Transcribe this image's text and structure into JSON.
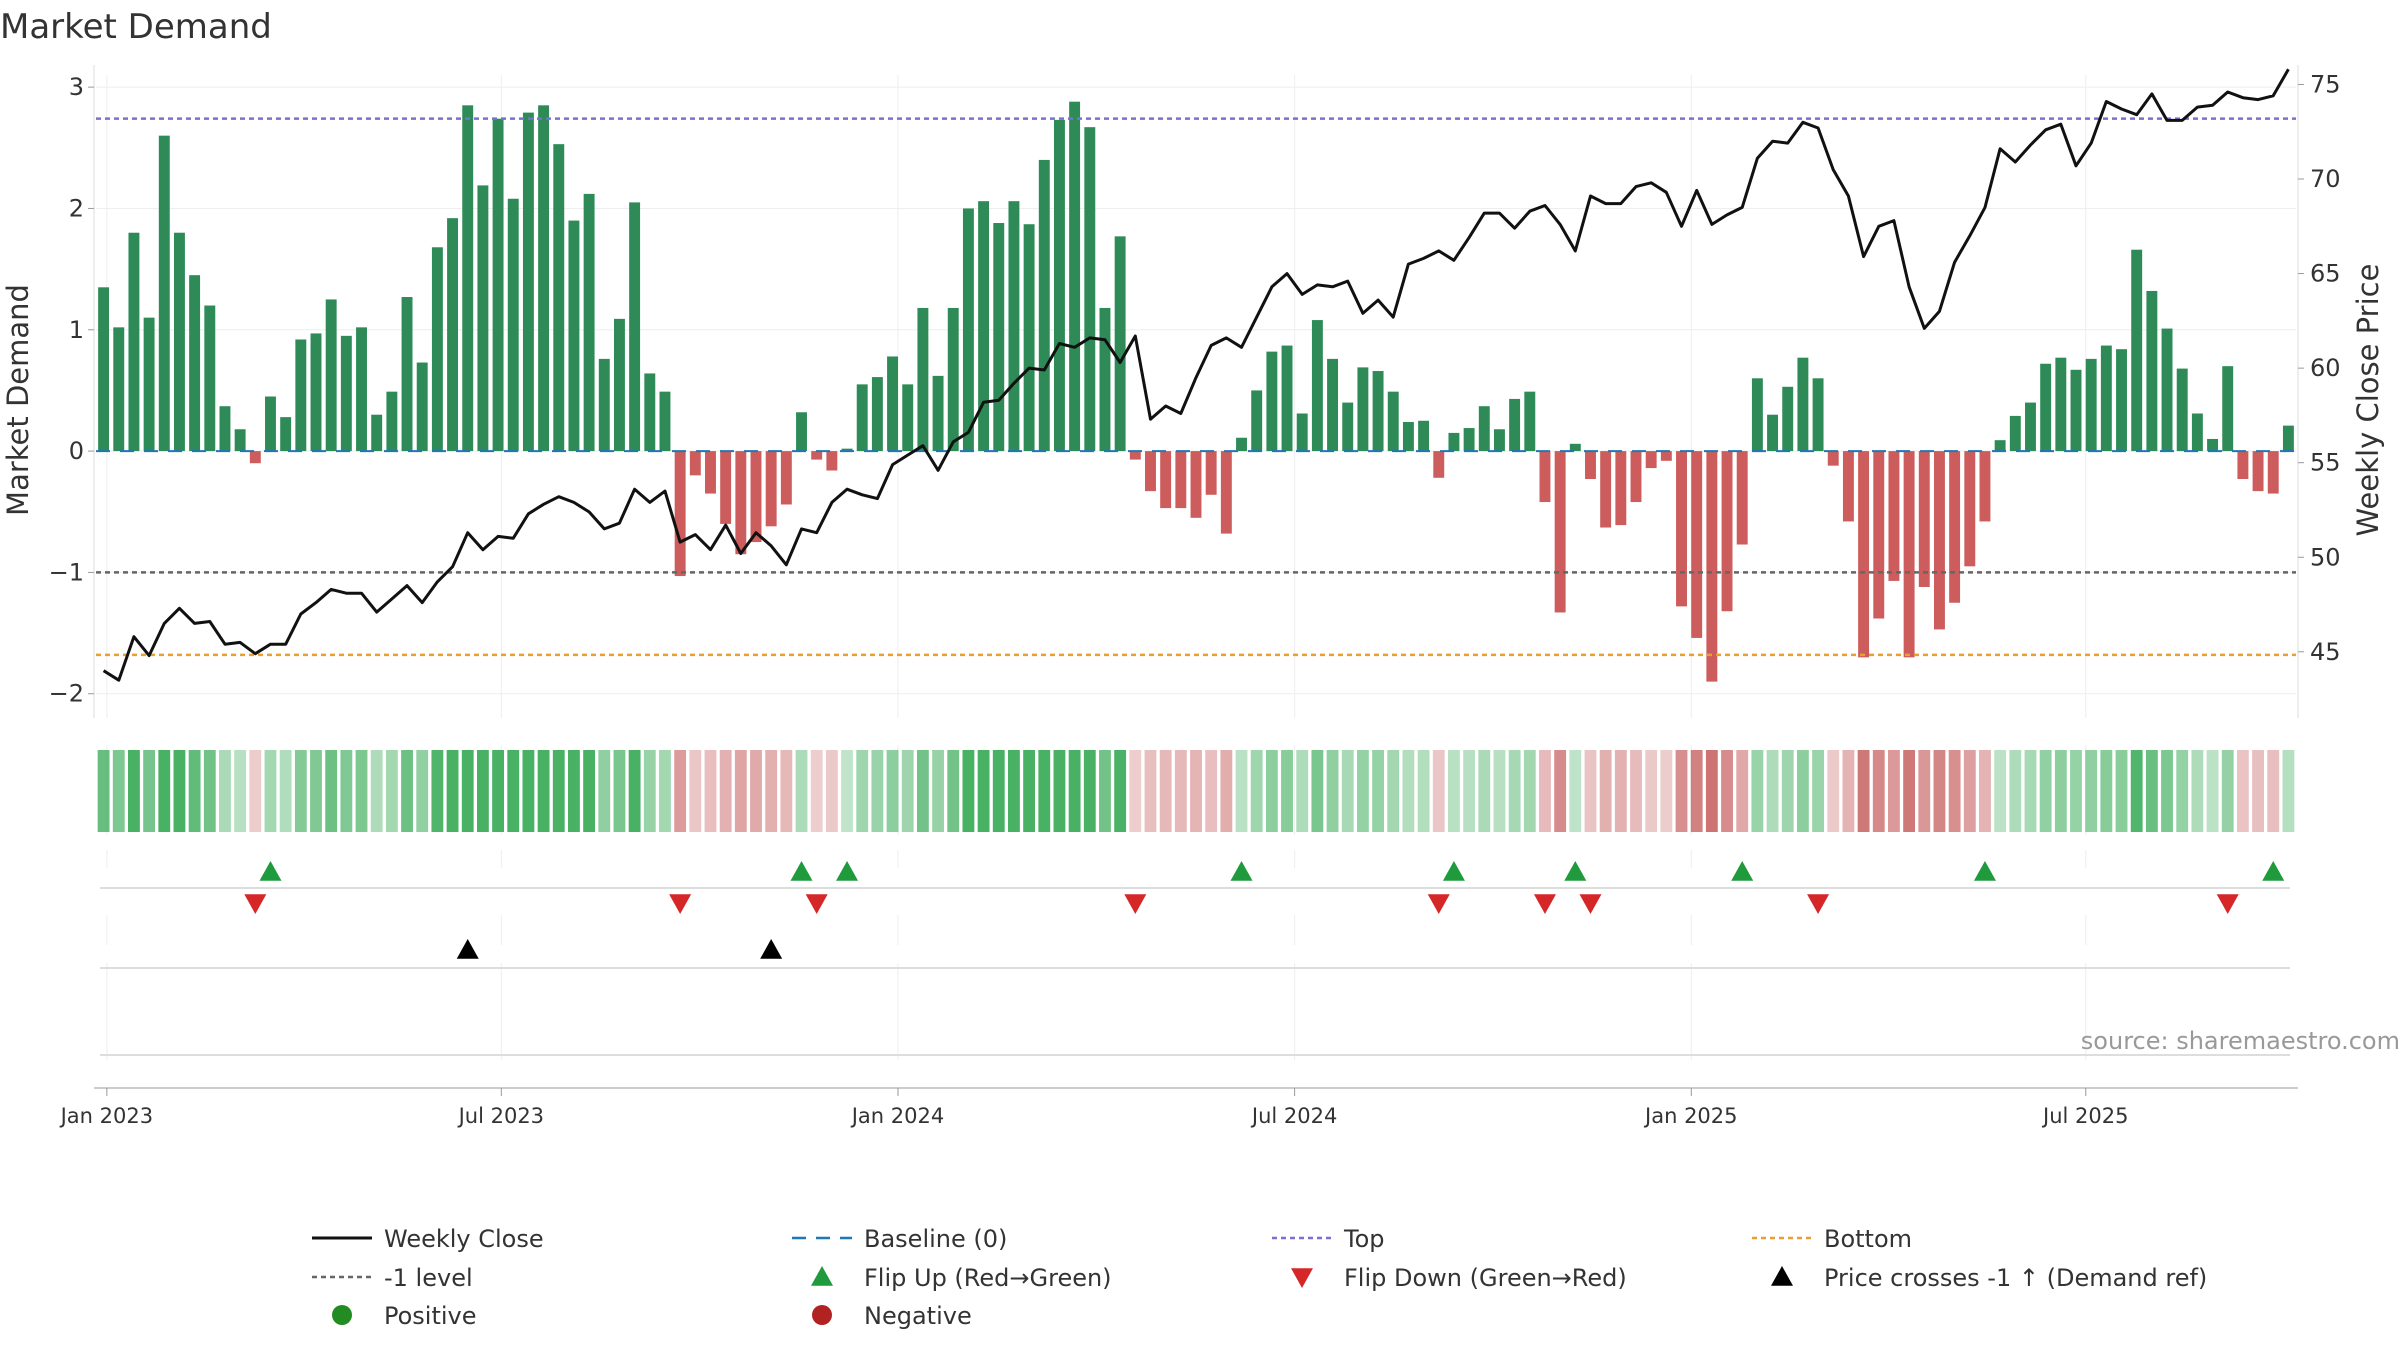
{
  "chart_data": {
    "type": "bar",
    "title": "Market Demand",
    "ylabel_left": "Market Demand",
    "ylabel_right": "Weekly Close Price",
    "ylim_left": [
      -2.2,
      3.1
    ],
    "ylim_right": [
      41.5,
      75.5
    ],
    "left_ticks": [
      3,
      2,
      1,
      0,
      -1,
      -2
    ],
    "left_tick_labels": [
      "3",
      "2",
      "1",
      "0",
      "−1",
      "−2"
    ],
    "right_ticks": [
      75,
      70,
      65,
      60,
      55,
      50,
      45
    ],
    "right_tick_labels": [
      "75",
      "70",
      "65",
      "60",
      "55",
      "50",
      "45"
    ],
    "x_start": "2022-12-26",
    "x_dates": [
      "2022-12-31",
      "2023-07-01",
      "2023-12-31",
      "2024-07-01",
      "2024-12-31",
      "2025-07-01"
    ],
    "x_tick_labels": [
      "Jan 2023",
      "Jul 2023",
      "Jan 2024",
      "Jul 2024",
      "Jan 2025",
      "Jul 2025"
    ],
    "reference_lines": {
      "top": 2.74,
      "minus_one": -1,
      "bottom": -1.68,
      "baseline": 0
    },
    "demand": [
      1.35,
      1.02,
      1.8,
      1.1,
      2.6,
      1.8,
      1.45,
      1.2,
      0.37,
      0.18,
      -0.1,
      0.45,
      0.28,
      0.92,
      0.97,
      1.25,
      0.95,
      1.02,
      0.3,
      0.49,
      1.27,
      0.73,
      1.68,
      1.92,
      2.85,
      2.19,
      2.74,
      2.08,
      2.79,
      2.85,
      2.53,
      1.9,
      2.12,
      0.76,
      1.09,
      2.05,
      0.64,
      0.49,
      -1.03,
      -0.2,
      -0.35,
      -0.6,
      -0.85,
      -0.75,
      -0.62,
      -0.44,
      0.32,
      -0.07,
      -0.16,
      0.02,
      0.55,
      0.61,
      0.78,
      0.55,
      1.18,
      0.62,
      1.18,
      2.0,
      2.06,
      1.88,
      2.06,
      1.87,
      2.4,
      2.73,
      2.88,
      2.67,
      1.18,
      1.77,
      -0.07,
      -0.33,
      -0.47,
      -0.47,
      -0.55,
      -0.36,
      -0.68,
      0.11,
      0.5,
      0.82,
      0.87,
      0.31,
      1.08,
      0.76,
      0.4,
      0.69,
      0.66,
      0.49,
      0.24,
      0.25,
      -0.22,
      0.15,
      0.19,
      0.37,
      0.18,
      0.43,
      0.49,
      -0.42,
      -1.33,
      0.06,
      -0.23,
      -0.63,
      -0.61,
      -0.42,
      -0.14,
      -0.08,
      -1.28,
      -1.54,
      -1.9,
      -1.32,
      -0.77,
      0.6,
      0.3,
      0.53,
      0.77,
      0.6,
      -0.12,
      -0.58,
      -1.7,
      -1.38,
      -1.07,
      -1.7,
      -1.12,
      -1.47,
      -1.25,
      -0.95,
      -0.58,
      0.09,
      0.29,
      0.4,
      0.72,
      0.77,
      0.67,
      0.76,
      0.87,
      0.84,
      1.66,
      1.32,
      1.01,
      0.68,
      0.31,
      0.1,
      0.7,
      -0.23,
      -0.33,
      -0.35,
      0.21
    ],
    "weekly_close": [
      44.0,
      43.5,
      45.8,
      44.8,
      46.5,
      47.3,
      46.5,
      46.6,
      45.4,
      45.5,
      44.9,
      45.4,
      45.4,
      47.0,
      47.6,
      48.3,
      48.1,
      48.1,
      47.1,
      47.8,
      48.5,
      47.6,
      48.7,
      49.5,
      51.3,
      50.4,
      51.1,
      51.0,
      52.3,
      52.8,
      53.2,
      52.9,
      52.4,
      51.5,
      51.8,
      53.6,
      52.9,
      53.5,
      50.8,
      51.2,
      50.4,
      51.7,
      50.2,
      51.3,
      50.6,
      49.6,
      51.5,
      51.3,
      52.9,
      53.6,
      53.3,
      53.1,
      54.9,
      55.4,
      55.9,
      54.6,
      56.1,
      56.6,
      58.2,
      58.3,
      59.2,
      60.0,
      59.9,
      61.3,
      61.1,
      61.6,
      61.5,
      60.3,
      61.7,
      57.3,
      58.0,
      57.6,
      59.5,
      61.2,
      61.6,
      61.1,
      62.7,
      64.3,
      65.0,
      63.9,
      64.4,
      64.3,
      64.6,
      62.9,
      63.6,
      62.7,
      65.5,
      65.8,
      66.2,
      65.7,
      66.9,
      68.2,
      68.2,
      67.4,
      68.3,
      68.6,
      67.6,
      66.2,
      69.1,
      68.7,
      68.7,
      69.6,
      69.8,
      69.3,
      67.5,
      69.4,
      67.6,
      68.1,
      68.5,
      71.1,
      72.0,
      71.9,
      73.0,
      72.7,
      70.5,
      69.1,
      65.9,
      67.5,
      67.8,
      64.3,
      62.1,
      63.0,
      65.6,
      67.0,
      68.5,
      71.6,
      70.9,
      71.8,
      72.6,
      72.9,
      70.7,
      71.9,
      74.1,
      73.7,
      73.4,
      74.5,
      73.1,
      73.1,
      73.8,
      73.9,
      74.6,
      74.3,
      74.2,
      74.4,
      75.8
    ],
    "flip_up_weeks": [
      11,
      46,
      49,
      75,
      89,
      97,
      108,
      124,
      143
    ],
    "flip_down_weeks": [
      10,
      38,
      47,
      68,
      88,
      95,
      98,
      113,
      140
    ],
    "price_cross_weeks": [
      24,
      44
    ],
    "legend": [
      {
        "label": "Weekly Close",
        "kind": "line",
        "color": "#111111"
      },
      {
        "label": "Baseline (0)",
        "kind": "dash",
        "color": "#1f77b4"
      },
      {
        "label": "Top",
        "kind": "dot",
        "color": "#7b6fd0"
      },
      {
        "label": "Bottom",
        "kind": "dot",
        "color": "#e8a033"
      },
      {
        "label": "-1 level",
        "kind": "dot",
        "color": "#666666"
      },
      {
        "label": "Flip Up (Red→Green)",
        "kind": "tri-up",
        "color": "#1f9a3d"
      },
      {
        "label": "Flip Down (Green→Red)",
        "kind": "tri-down",
        "color": "#d62728"
      },
      {
        "label": "Price crosses -1 ↑ (Demand ref)",
        "kind": "tri-up",
        "color": "#000000"
      },
      {
        "label": "Positive",
        "kind": "circle",
        "color": "#228b22"
      },
      {
        "label": "Negative",
        "kind": "circle",
        "color": "#b22222"
      }
    ],
    "source": "source: sharemaestro.com"
  },
  "colors": {
    "positive_bar": "#2e8b57",
    "negative_bar": "#cd5c5c",
    "price_line": "#111111",
    "strip_positive": "#34a853",
    "strip_negative": "#c86464"
  }
}
